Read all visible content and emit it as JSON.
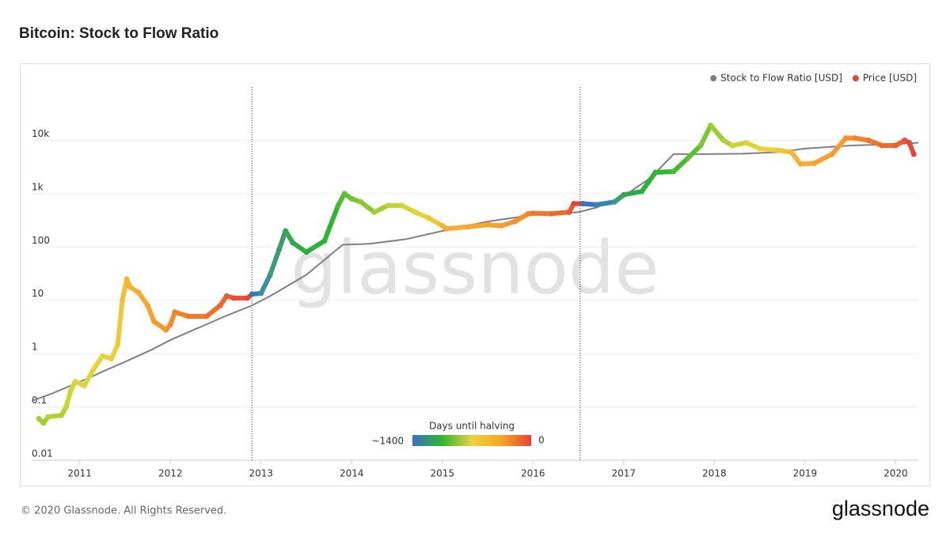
{
  "chart_data": {
    "type": "scatter-line",
    "title": "Bitcoin: Stock to Flow Ratio",
    "log_scale": true,
    "grid": true,
    "legend": "top-right",
    "xlim": [
      2010.47,
      2020.25
    ],
    "xticks": [
      2011,
      2012,
      2013,
      2014,
      2015,
      2016,
      2017,
      2018,
      2019,
      2020
    ],
    "ylim": [
      0.01,
      100000
    ],
    "yticks": [
      0.01,
      0.1,
      1,
      10,
      100,
      {
        "value": 1000,
        "label": "1k"
      },
      {
        "value": 10000,
        "label": "10k"
      }
    ],
    "halvings": [
      2012.9,
      2016.52
    ],
    "series": [
      {
        "name": "Stock to Flow Ratio [USD]",
        "color": "#808080",
        "kind": "line",
        "x": [
          2010.47,
          2010.7,
          2010.9,
          2011.1,
          2011.3,
          2011.5,
          2011.8,
          2012.0,
          2012.3,
          2012.6,
          2012.9,
          2013.1,
          2013.5,
          2013.9,
          2014.2,
          2014.6,
          2015.0,
          2015.5,
          2016.0,
          2016.5,
          2016.7,
          2017.0,
          2017.3,
          2017.55,
          2017.9,
          2018.3,
          2018.7,
          2019.0,
          2019.5,
          2020.0,
          2020.25
        ],
        "values": [
          0.13,
          0.18,
          0.25,
          0.35,
          0.5,
          0.7,
          1.2,
          1.8,
          3,
          5,
          8,
          12,
          30,
          110,
          115,
          140,
          200,
          300,
          400,
          450,
          550,
          900,
          2000,
          5500,
          5500,
          5600,
          6000,
          7000,
          8000,
          8500,
          9000
        ]
      },
      {
        "name": "Price [USD]",
        "color": "#e8433a",
        "kind": "dots",
        "x": [
          2010.55,
          2010.6,
          2010.65,
          2010.8,
          2010.85,
          2010.9,
          2010.95,
          2011.05,
          2011.15,
          2011.25,
          2011.35,
          2011.42,
          2011.47,
          2011.52,
          2011.55,
          2011.65,
          2011.75,
          2011.82,
          2011.95,
          2012.0,
          2012.05,
          2012.2,
          2012.4,
          2012.55,
          2012.62,
          2012.7,
          2012.85,
          2012.9,
          2013.0,
          2013.1,
          2013.2,
          2013.27,
          2013.35,
          2013.5,
          2013.7,
          2013.85,
          2013.92,
          2014.0,
          2014.1,
          2014.25,
          2014.4,
          2014.55,
          2014.7,
          2014.85,
          2015.0,
          2015.05,
          2015.3,
          2015.5,
          2015.65,
          2015.8,
          2015.95,
          2016.0,
          2016.2,
          2016.4,
          2016.45,
          2016.55,
          2016.7,
          2016.9,
          2017.0,
          2017.2,
          2017.35,
          2017.55,
          2017.7,
          2017.85,
          2017.96,
          2018.1,
          2018.2,
          2018.35,
          2018.5,
          2018.7,
          2018.85,
          2018.95,
          2019.1,
          2019.3,
          2019.45,
          2019.55,
          2019.7,
          2019.85,
          2020.0,
          2020.1,
          2020.15,
          2020.2
        ],
        "values": [
          0.06,
          0.05,
          0.065,
          0.07,
          0.1,
          0.2,
          0.3,
          0.25,
          0.5,
          0.9,
          0.8,
          1.5,
          10,
          25,
          18,
          14,
          8,
          4,
          2.8,
          3.5,
          6,
          5,
          5,
          8,
          12,
          11,
          11,
          13,
          13.5,
          30,
          90,
          200,
          120,
          80,
          130,
          600,
          1000,
          800,
          700,
          450,
          600,
          600,
          450,
          350,
          250,
          220,
          240,
          260,
          250,
          300,
          420,
          430,
          420,
          450,
          650,
          650,
          620,
          700,
          950,
          1100,
          2500,
          2600,
          4500,
          8000,
          19000,
          10000,
          8000,
          9000,
          7000,
          6500,
          6000,
          3600,
          3700,
          5500,
          11000,
          11000,
          10000,
          8000,
          8000,
          10000,
          9000,
          5500
        ],
        "colors": [
          "#a8cc30",
          "#a8cc30",
          "#b5d030",
          "#b5d030",
          "#c8d538",
          "#d0d63a",
          "#d8d63c",
          "#dcd63c",
          "#e4d43c",
          "#e8d23c",
          "#ead03c",
          "#efc73a",
          "#f2be38",
          "#f4b535",
          "#f4b034",
          "#f4ab33",
          "#f5a22f",
          "#f5992c",
          "#f5922b",
          "#f58a29",
          "#f28228",
          "#f07a28",
          "#ef702a",
          "#ed6530",
          "#ec5a32",
          "#ea5035",
          "#e84838",
          "#2f7fb0",
          "#3a8fa0",
          "#3a9a80",
          "#36a060",
          "#30a850",
          "#2cab45",
          "#2db03a",
          "#2db530",
          "#4ebd2d",
          "#66c22d",
          "#78c42f",
          "#8ec632",
          "#a6cc33",
          "#c0d236",
          "#d4d43a",
          "#e4d43c",
          "#ecc63a",
          "#f2b636",
          "#f3ad34",
          "#f4a833",
          "#f4a232",
          "#f59b2f",
          "#f5912c",
          "#f2822a",
          "#f07629",
          "#ed6a2c",
          "#ea5532",
          "#e8433a",
          "#3a6fc4",
          "#3584b0",
          "#3a9a80",
          "#30a850",
          "#2db03a",
          "#30b530",
          "#42bb2e",
          "#5cc02e",
          "#7cc630",
          "#9acb33",
          "#b2cf34",
          "#c8d438",
          "#dcd63c",
          "#ecd03c",
          "#f2c03a",
          "#f4b437",
          "#f5ab34",
          "#f5a432",
          "#f59c30",
          "#f5902c",
          "#f2822a",
          "#f0752a",
          "#ed6a2c",
          "#ec5f30",
          "#ea5234",
          "#e84838",
          "#e8433a"
        ]
      }
    ],
    "colorbar": {
      "title": "Days until halving",
      "labels": [
        "~1400",
        "0"
      ],
      "colors": [
        "#3a6fc4",
        "#2db82d",
        "#f0d040",
        "#f5a623",
        "#e8433a"
      ]
    },
    "watermark": "glassnode",
    "footer": "© 2020 Glassnode. All Rights Reserved.",
    "logo": "glassnode"
  }
}
